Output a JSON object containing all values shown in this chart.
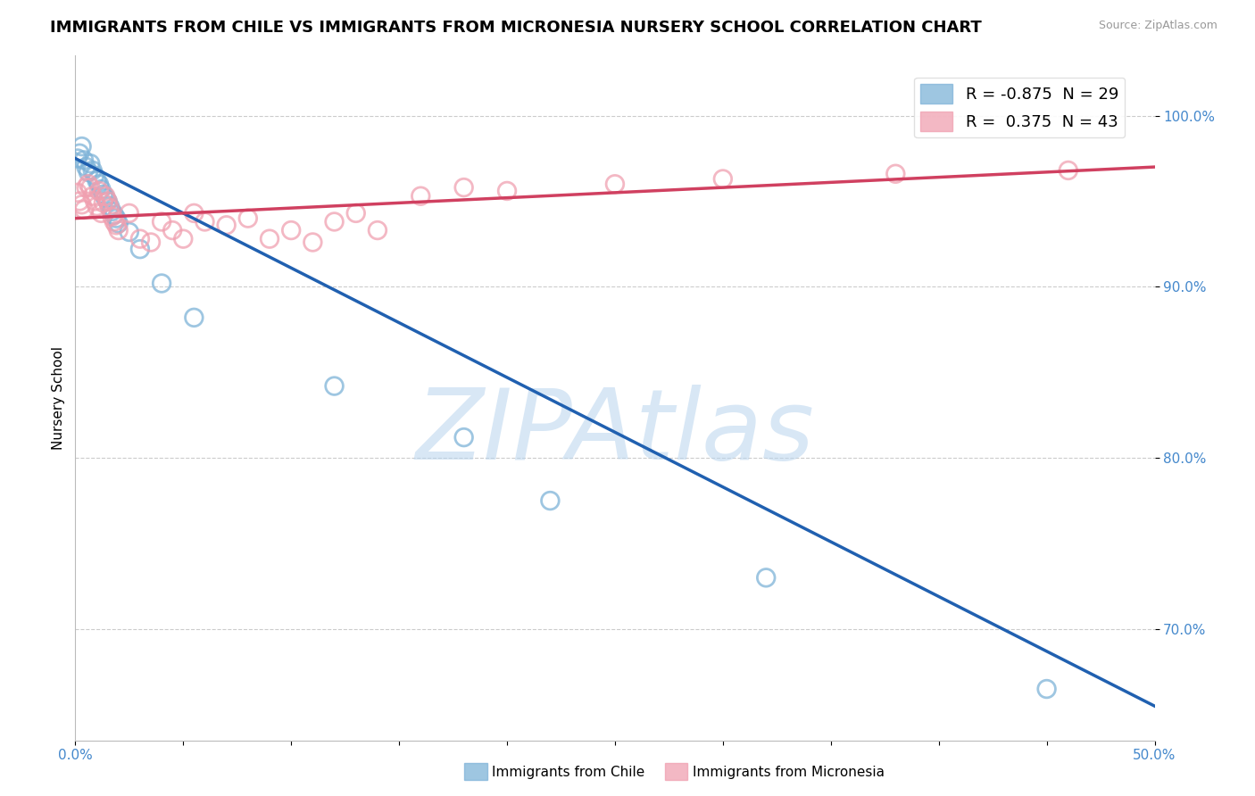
{
  "title": "IMMIGRANTS FROM CHILE VS IMMIGRANTS FROM MICRONESIA NURSERY SCHOOL CORRELATION CHART",
  "source_text": "Source: ZipAtlas.com",
  "ylabel": "Nursery School",
  "xlim": [
    0.0,
    0.5
  ],
  "ylim": [
    0.635,
    1.035
  ],
  "ytick_labels": [
    "100.0%",
    "90.0%",
    "80.0%",
    "70.0%"
  ],
  "ytick_values": [
    1.0,
    0.9,
    0.8,
    0.7
  ],
  "chile_R": -0.875,
  "chile_N": 29,
  "micronesia_R": 0.375,
  "micronesia_N": 43,
  "chile_color": "#7eb3d8",
  "micronesia_color": "#f0a0b0",
  "chile_line_color": "#2060b0",
  "micronesia_line_color": "#d04060",
  "background_color": "#ffffff",
  "grid_color": "#cccccc",
  "watermark_text": "ZIPAtlas",
  "watermark_color": "#b8d4ee",
  "title_fontsize": 13,
  "axis_label_fontsize": 11,
  "tick_fontsize": 11,
  "legend_fontsize": 13,
  "chile_points_x": [
    0.001,
    0.002,
    0.003,
    0.004,
    0.005,
    0.006,
    0.007,
    0.008,
    0.009,
    0.01,
    0.011,
    0.012,
    0.013,
    0.014,
    0.015,
    0.016,
    0.017,
    0.018,
    0.019,
    0.02,
    0.025,
    0.03,
    0.04,
    0.055,
    0.12,
    0.18,
    0.22,
    0.32,
    0.45
  ],
  "chile_points_y": [
    0.975,
    0.978,
    0.982,
    0.974,
    0.97,
    0.967,
    0.972,
    0.968,
    0.965,
    0.962,
    0.96,
    0.957,
    0.954,
    0.952,
    0.95,
    0.947,
    0.944,
    0.942,
    0.94,
    0.937,
    0.932,
    0.922,
    0.902,
    0.882,
    0.842,
    0.812,
    0.775,
    0.73,
    0.665
  ],
  "micronesia_points_x": [
    0.001,
    0.002,
    0.003,
    0.004,
    0.005,
    0.006,
    0.007,
    0.008,
    0.009,
    0.01,
    0.011,
    0.012,
    0.013,
    0.014,
    0.015,
    0.016,
    0.017,
    0.018,
    0.019,
    0.02,
    0.025,
    0.03,
    0.035,
    0.04,
    0.045,
    0.05,
    0.055,
    0.06,
    0.07,
    0.08,
    0.09,
    0.1,
    0.11,
    0.12,
    0.13,
    0.14,
    0.16,
    0.18,
    0.2,
    0.25,
    0.3,
    0.38,
    0.46
  ],
  "micronesia_points_y": [
    0.955,
    0.95,
    0.948,
    0.945,
    0.958,
    0.96,
    0.958,
    0.953,
    0.95,
    0.947,
    0.956,
    0.943,
    0.949,
    0.953,
    0.95,
    0.946,
    0.941,
    0.938,
    0.936,
    0.933,
    0.943,
    0.928,
    0.926,
    0.938,
    0.933,
    0.928,
    0.943,
    0.938,
    0.936,
    0.94,
    0.928,
    0.933,
    0.926,
    0.938,
    0.943,
    0.933,
    0.953,
    0.958,
    0.956,
    0.96,
    0.963,
    0.966,
    0.968
  ],
  "chile_line_x0": 0.0,
  "chile_line_y0": 0.975,
  "chile_line_x1": 0.5,
  "chile_line_y1": 0.655,
  "micronesia_line_x0": 0.0,
  "micronesia_line_y0": 0.94,
  "micronesia_line_x1": 0.5,
  "micronesia_line_y1": 0.97
}
